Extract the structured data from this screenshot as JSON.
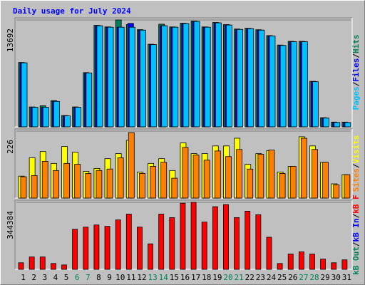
{
  "chart_data": [
    {
      "type": "bar",
      "title": "Daily usage for July 2024",
      "legend_separator": "/",
      "series": [
        {
          "name": "Hits",
          "color": "#00805c",
          "values": [
            8250,
            2550,
            2700,
            3360,
            1450,
            2550,
            6950,
            13000,
            12800,
            13692,
            13100,
            12450,
            10580,
            13150,
            12800,
            13280,
            13550,
            12800,
            13370,
            13100,
            12530,
            12630,
            12440,
            11690,
            10480,
            10950,
            10950,
            5830,
            1170,
            610,
            610
          ]
        },
        {
          "name": "Files",
          "color": "#0000ff",
          "values": [
            8200,
            2500,
            2500,
            3260,
            1400,
            2500,
            6900,
            12950,
            12760,
            12760,
            13250,
            12390,
            10530,
            12950,
            12760,
            13230,
            13500,
            12760,
            13320,
            13040,
            12480,
            12580,
            12390,
            11640,
            10430,
            10900,
            10900,
            5780,
            1120,
            560,
            560
          ]
        },
        {
          "name": "Pages",
          "color": "#00c0ff",
          "values": [
            8200,
            2500,
            2500,
            3260,
            1400,
            2500,
            6900,
            12950,
            12760,
            12760,
            12760,
            12390,
            10530,
            12950,
            12760,
            13230,
            13500,
            12760,
            13320,
            13040,
            12480,
            12580,
            12390,
            11640,
            10430,
            10900,
            10900,
            5780,
            1120,
            560,
            560
          ]
        }
      ],
      "ylim": [
        0,
        13692
      ],
      "yticks": [
        13692
      ]
    },
    {
      "type": "bar",
      "legend_separator": "/",
      "series": [
        {
          "name": "Visits",
          "color": "#ffff00",
          "values": [
            74,
            136,
            157,
            117,
            174,
            155,
            90,
            100,
            133,
            150,
            195,
            88,
            117,
            133,
            93,
            186,
            150,
            150,
            176,
            176,
            202,
            114,
            150,
            160,
            88,
            107,
            207,
            176,
            121,
            48,
            79
          ]
        },
        {
          "name": "Sites",
          "color": "#ff8000",
          "values": [
            72,
            76,
            124,
            93,
            117,
            114,
            83,
            93,
            98,
            136,
            221,
            83,
            107,
            121,
            67,
            171,
            145,
            128,
            159,
            140,
            164,
            98,
            148,
            162,
            83,
            107,
            202,
            164,
            121,
            45,
            79
          ]
        }
      ],
      "ylim": [
        0,
        226
      ],
      "yticks": [
        226
      ]
    },
    {
      "type": "bar",
      "legend_separator": "/",
      "legend_names": [
        {
          "name": "kB Out",
          "color": "#00805c"
        },
        {
          "name": "kB In",
          "color": "#0000ff"
        },
        {
          "name": "kB F",
          "color": "#ff0000"
        }
      ],
      "series": [
        {
          "name": "kB F",
          "color": "#ff0000",
          "values": [
            33700,
            63600,
            63600,
            30000,
            22500,
            206000,
            217000,
            228000,
            221000,
            254000,
            284000,
            217000,
            131000,
            284000,
            266000,
            340000,
            344384,
            243000,
            322000,
            333000,
            266000,
            299000,
            281000,
            165000,
            30000,
            78600,
            90000,
            78600,
            52400,
            33700,
            48700
          ]
        }
      ],
      "ylim": [
        0,
        344384
      ],
      "yticks": [
        344384
      ],
      "categories": [
        "1",
        "2",
        "3",
        "4",
        "5",
        "6",
        "7",
        "8",
        "9",
        "10",
        "11",
        "12",
        "13",
        "14",
        "15",
        "16",
        "17",
        "18",
        "19",
        "20",
        "21",
        "22",
        "23",
        "24",
        "25",
        "26",
        "27",
        "28",
        "29",
        "30",
        "31"
      ],
      "category_colors": [
        "#000000",
        "#000000",
        "#000000",
        "#000000",
        "#000000",
        "#00805c",
        "#00805c",
        "#000000",
        "#000000",
        "#000000",
        "#000000",
        "#000000",
        "#00805c",
        "#00805c",
        "#000000",
        "#000000",
        "#000000",
        "#000000",
        "#000000",
        "#00805c",
        "#00805c",
        "#000000",
        "#000000",
        "#000000",
        "#000000",
        "#000000",
        "#00805c",
        "#00805c",
        "#000000",
        "#000000",
        "#000000"
      ]
    }
  ]
}
